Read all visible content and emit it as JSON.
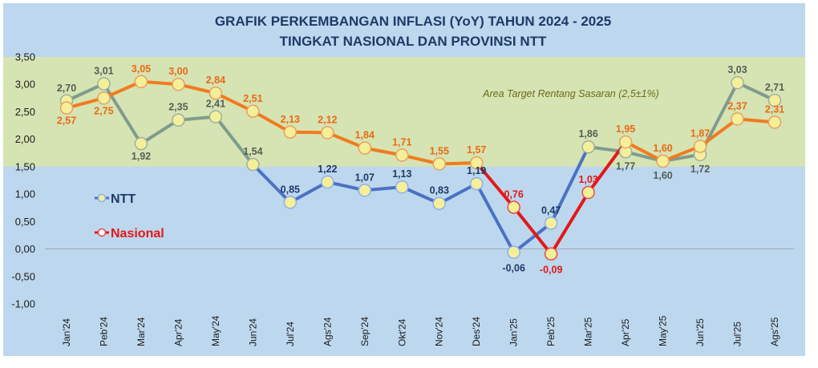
{
  "chart_data": {
    "type": "line",
    "title": "GRAFIK PERKEMBANGAN INFLASI  (YoY) TAHUN 2024 - 2025",
    "subtitle": "TINGKAT NASIONAL DAN PROVINSI NTT",
    "categories": [
      "Jan'24",
      "Peb'24",
      "Mar'24",
      "Apr'24",
      "May'24",
      "Jun'24",
      "Jul'24",
      "Ags'24",
      "Sep'24",
      "Okt'24",
      "Nov'24",
      "Des'24",
      "Jan'25",
      "Peb'25",
      "Mar'25",
      "Apr'25",
      "May'25",
      "Jun'25",
      "Jul'25",
      "Ags'25"
    ],
    "series": [
      {
        "name": "NTT",
        "values": [
          2.7,
          3.01,
          1.92,
          2.35,
          2.41,
          1.54,
          0.85,
          1.22,
          1.07,
          1.13,
          0.83,
          1.19,
          -0.06,
          0.47,
          1.86,
          1.77,
          1.6,
          1.72,
          3.03,
          2.71
        ],
        "labels": [
          "2,70",
          "3,01",
          "1,92",
          "2,35",
          "2,41",
          "1,54",
          "0,85",
          "1,22",
          "1,07",
          "1,13",
          "0,83",
          "1,19",
          "-0,06",
          "0,47",
          "1,86",
          "1,77",
          "1,60",
          "1,72",
          "3,03",
          "2,71"
        ]
      },
      {
        "name": "Nasional",
        "values": [
          2.57,
          2.75,
          3.05,
          3.0,
          2.84,
          2.51,
          2.13,
          2.12,
          1.84,
          1.71,
          1.55,
          1.57,
          0.76,
          -0.09,
          1.03,
          1.95,
          1.6,
          1.87,
          2.37,
          2.31
        ],
        "labels": [
          "2,57",
          "2,75",
          "3,05",
          "3,00",
          "2,84",
          "2,51",
          "2,13",
          "2,12",
          "1,84",
          "1,71",
          "1,55",
          "1,57",
          "0,76",
          "-0,09",
          "1,03",
          "1,95",
          "1,60",
          "1,87",
          "2,37",
          "2,31"
        ]
      }
    ],
    "yticks": [
      "3,50",
      "3,00",
      "2,50",
      "2,00",
      "1,50",
      "1,00",
      "0,50",
      "0,00",
      "-0,50",
      "-1,00"
    ],
    "ylim": [
      -1.0,
      3.5
    ],
    "target_band": [
      1.5,
      3.5
    ],
    "target_note": "Area Target Rentang Sasaran (2,5±1%)",
    "legend_position": "left"
  },
  "colors": {
    "background": "#bdd7ee",
    "target_band": "#d6e3b3",
    "ntt_in_target": "#7f9c8c",
    "ntt_below_target": "#4a72c4",
    "ntt_label_in": "#555f55",
    "ntt_label_below": "#1f3a68",
    "nasional_in_target": "#f07b1f",
    "nasional_below_target": "#e31818",
    "nasional_label_in": "#ea6a14",
    "nasional_label_below": "#e31818",
    "marker_fill": "#f6ef9a",
    "title": "#1f3a68"
  }
}
